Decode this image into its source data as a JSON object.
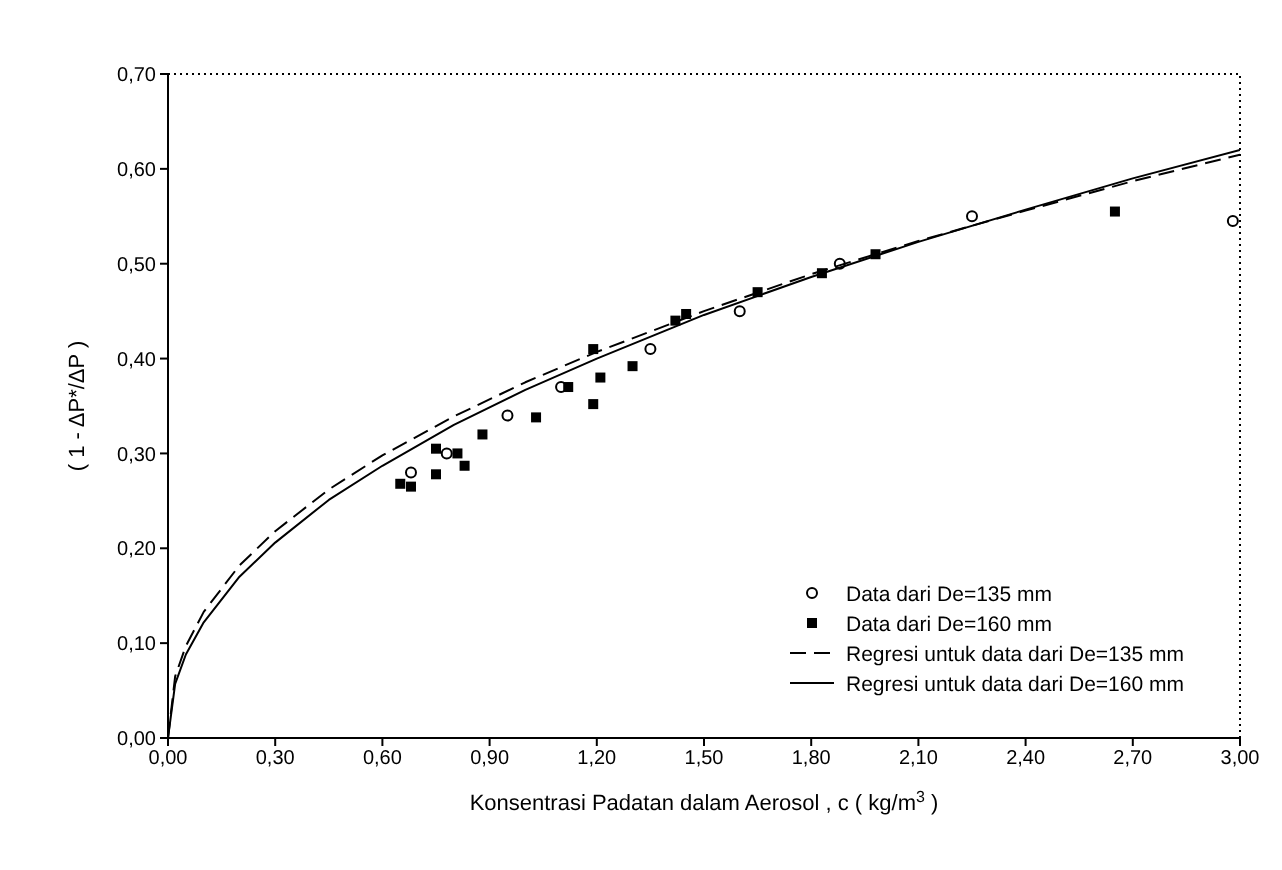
{
  "chart_data": {
    "type": "scatter",
    "xlabel": "Konsentrasi Padatan dalam Aerosol , c ( kg/m$^{3}$ )",
    "ylabel": "( 1 - ΔP*/ΔP )",
    "xlim": [
      0,
      3
    ],
    "ylim": [
      0,
      0.7
    ],
    "xticks": [
      {
        "value": 0,
        "label": "0,00"
      },
      {
        "value": 0.3,
        "label": "0,30"
      },
      {
        "value": 0.6,
        "label": "0,60"
      },
      {
        "value": 0.9,
        "label": "0,90"
      },
      {
        "value": 1.2,
        "label": "1,20"
      },
      {
        "value": 1.5,
        "label": "1,50"
      },
      {
        "value": 1.8,
        "label": "1,80"
      },
      {
        "value": 2.1,
        "label": "2,10"
      },
      {
        "value": 2.4,
        "label": "2,40"
      },
      {
        "value": 2.7,
        "label": "2,70"
      },
      {
        "value": 3,
        "label": "3,00"
      }
    ],
    "yticks": [
      {
        "value": 0,
        "label": "0,00"
      },
      {
        "value": 0.1,
        "label": "0,10"
      },
      {
        "value": 0.2,
        "label": "0,20"
      },
      {
        "value": 0.3,
        "label": "0,30"
      },
      {
        "value": 0.4,
        "label": "0,40"
      },
      {
        "value": 0.5,
        "label": "0,50"
      },
      {
        "value": 0.6,
        "label": "0,60"
      },
      {
        "value": 0.7,
        "label": "0,70"
      }
    ],
    "legend": "bottom right",
    "series": [
      {
        "name": "Data dari De=135 mm",
        "marker": "circle",
        "color": "#000000",
        "x": [
          0.68,
          0.78,
          0.95,
          1.1,
          1.35,
          1.6,
          1.88,
          2.25,
          2.98
        ],
        "values": [
          0.28,
          0.3,
          0.34,
          0.37,
          0.41,
          0.45,
          0.5,
          0.55,
          0.545
        ]
      },
      {
        "name": "Data dari De=160 mm",
        "marker": "square",
        "color": "#000000",
        "x": [
          0.65,
          0.68,
          0.75,
          0.75,
          0.81,
          0.83,
          0.88,
          1.03,
          1.12,
          1.19,
          1.19,
          1.21,
          1.3,
          1.42,
          1.45,
          1.65,
          1.83,
          1.98,
          2.65
        ],
        "values": [
          0.268,
          0.265,
          0.278,
          0.305,
          0.3,
          0.287,
          0.32,
          0.338,
          0.37,
          0.352,
          0.41,
          0.38,
          0.392,
          0.44,
          0.447,
          0.47,
          0.49,
          0.51,
          0.555
        ]
      },
      {
        "name": "Regresi untuk data dari De=135 mm",
        "type": "line",
        "marker": "none",
        "line_style": "dashed",
        "color": "#000000",
        "x": [
          0,
          0.02,
          0.05,
          0.1,
          0.2,
          0.3,
          0.45,
          0.6,
          0.8,
          1.0,
          1.2,
          1.5,
          1.8,
          2.1,
          2.4,
          2.7,
          3.0
        ],
        "values": [
          0,
          0.065,
          0.097,
          0.133,
          0.182,
          0.218,
          0.262,
          0.298,
          0.339,
          0.375,
          0.407,
          0.45,
          0.489,
          0.524,
          0.556,
          0.587,
          0.615
        ]
      },
      {
        "name": "Regresi untuk data dari De=160 mm",
        "type": "line",
        "marker": "none",
        "line_style": "solid",
        "color": "#000000",
        "x": [
          0,
          0.02,
          0.05,
          0.1,
          0.2,
          0.3,
          0.45,
          0.6,
          0.8,
          1.0,
          1.2,
          1.5,
          1.8,
          2.1,
          2.4,
          2.7,
          3.0
        ],
        "values": [
          0,
          0.057,
          0.088,
          0.122,
          0.17,
          0.206,
          0.251,
          0.287,
          0.33,
          0.367,
          0.4,
          0.446,
          0.486,
          0.523,
          0.557,
          0.59,
          0.62
        ]
      }
    ]
  }
}
